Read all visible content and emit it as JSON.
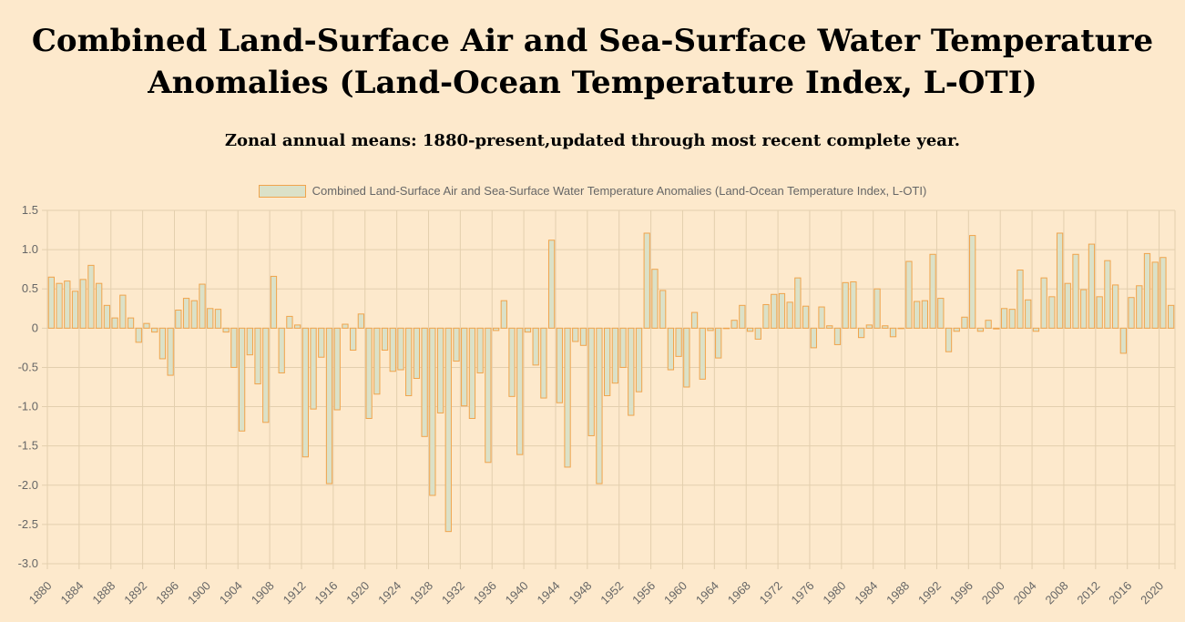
{
  "header": {
    "title_line1": "Combined Land-Surface Air and Sea-Surface Water Temperature",
    "title_line2": "Anomalies (Land-Ocean Temperature Index, L-OTI)",
    "subtitle": "Zonal annual means: 1880-present,updated through most recent complete year."
  },
  "colors": {
    "bar_fill": "#dbe1c8",
    "bar_border": "#f0a44c",
    "grid": "#e3cfae",
    "background": "#fde9cc"
  },
  "chart_data": {
    "type": "bar",
    "title": "Combined Land-Surface Air and Sea-Surface Water Temperature Anomalies (Land-Ocean Temperature Index, L-OTI)",
    "subtitle": "Zonal annual means: 1880-present,updated through most recent complete year.",
    "legend": {
      "position": "top-center",
      "label": "Combined Land-Surface Air and Sea-Surface Water Temperature Anomalies (Land-Ocean Temperature Index, L-OTI)"
    },
    "xlabel": "",
    "ylabel": "",
    "grid": true,
    "ylim": [
      -3.0,
      1.5
    ],
    "y_ticks": [
      "1.5",
      "1.0",
      "0.5",
      "0",
      "-0.5",
      "-1.0",
      "-1.5",
      "-2.0",
      "-2.5",
      "-3.0"
    ],
    "x_start": 1880,
    "x_tick_labels": [
      "1880",
      "1884",
      "1888",
      "1892",
      "1896",
      "1900",
      "1904",
      "1908",
      "1912",
      "1916",
      "1920",
      "1924",
      "1928",
      "1932",
      "1936",
      "1940",
      "1944",
      "1948",
      "1952",
      "1956",
      "1960",
      "1964",
      "1968",
      "1972",
      "1976",
      "1980",
      "1984",
      "1988",
      "1992",
      "1996",
      "2000",
      "2004",
      "2008",
      "2012",
      "2016",
      "2020"
    ],
    "series": [
      {
        "name": "Combined Land-Surface Air and Sea-Surface Water Temperature Anomalies (Land-Ocean Temperature Index, L-OTI)",
        "values": [
          0.65,
          0.57,
          0.6,
          0.47,
          0.62,
          0.8,
          0.57,
          0.29,
          0.13,
          0.42,
          0.13,
          -0.18,
          0.06,
          -0.05,
          -0.39,
          -0.6,
          0.23,
          0.38,
          0.35,
          0.56,
          0.25,
          0.24,
          -0.05,
          -0.5,
          -1.31,
          -0.34,
          -0.71,
          -1.2,
          0.66,
          -0.57,
          0.15,
          0.04,
          -1.64,
          -1.03,
          -0.37,
          -1.98,
          -1.04,
          0.05,
          -0.28,
          0.18,
          -1.15,
          -0.84,
          -0.28,
          -0.55,
          -0.53,
          -0.86,
          -0.64,
          -1.38,
          -2.13,
          -1.08,
          -2.59,
          -0.42,
          -0.99,
          -1.15,
          -0.57,
          -1.71,
          -0.03,
          0.35,
          -0.87,
          -1.61,
          -0.05,
          -0.47,
          -0.89,
          1.12,
          -0.95,
          -1.77,
          -0.17,
          -0.22,
          -1.37,
          -1.98,
          -0.86,
          -0.7,
          -0.5,
          -1.11,
          -0.81,
          1.21,
          0.75,
          0.48,
          -0.53,
          -0.36,
          -0.75,
          0.2,
          -0.65,
          -0.03,
          -0.38,
          0.0,
          0.1,
          0.29,
          -0.04,
          -0.14,
          0.3,
          0.43,
          0.44,
          0.33,
          0.64,
          0.28,
          -0.25,
          0.27,
          0.03,
          -0.21,
          0.58,
          0.59,
          -0.12,
          0.04,
          0.5,
          0.03,
          -0.11,
          0.0,
          0.85,
          0.34,
          0.35,
          0.94,
          0.38,
          -0.3,
          -0.04,
          0.14,
          1.18,
          -0.04,
          0.1,
          -0.01,
          0.25,
          0.24,
          0.74,
          0.36,
          -0.04,
          0.64,
          0.4,
          1.21,
          0.57,
          0.94,
          0.49,
          1.07,
          0.4,
          0.86,
          0.55,
          -0.32,
          0.39,
          0.54,
          0.95,
          0.84,
          0.9,
          0.29
        ]
      }
    ]
  }
}
